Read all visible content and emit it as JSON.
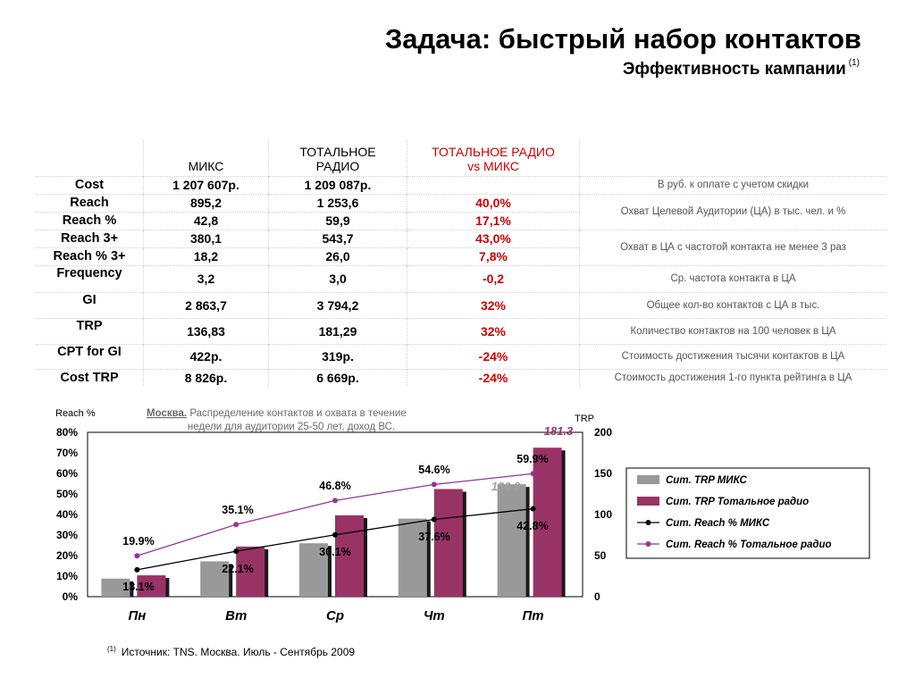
{
  "header": {
    "title": "Задача: быстрый набор контактов",
    "subtitle": "Эффективность кампании",
    "subtitle_ref": "(1)"
  },
  "table": {
    "columns": [
      "МИКС",
      "ТОТАЛЬНОЕ РАДИО",
      "ТОТАЛЬНОЕ РАДИО vs МИКС"
    ],
    "column_lines": {
      "c1": [
        "МИКС"
      ],
      "c2": [
        "ТОТАЛЬНОЕ",
        "РАДИО"
      ],
      "c3": [
        "ТОТАЛЬНОЕ РАДИО",
        "vs МИКС"
      ]
    },
    "rows": [
      {
        "label": "Cost",
        "mix": "1 207 607р.",
        "total": "1 209 087р.",
        "diff": ""
      },
      {
        "label": "Reach",
        "mix": "895,2",
        "total": "1 253,6",
        "diff": "40,0%"
      },
      {
        "label": "Reach %",
        "mix": "42,8",
        "total": "59,9",
        "diff": "17,1%"
      },
      {
        "label": "Reach 3+",
        "mix": "380,1",
        "total": "543,7",
        "diff": "43,0%"
      },
      {
        "label": "Reach % 3+",
        "mix": "18,2",
        "total": "26,0",
        "diff": "7,8%"
      },
      {
        "label": "Frequency",
        "mix": "3,2",
        "total": "3,0",
        "diff": "-0,2"
      },
      {
        "label": "GI",
        "mix": "2 863,7",
        "total": "3 794,2",
        "diff": "32%"
      },
      {
        "label": "TRP",
        "mix": "136,83",
        "total": "181,29",
        "diff": "32%"
      },
      {
        "label": "CPT for GI",
        "mix": "422р.",
        "total": "319р.",
        "diff": "-24%"
      },
      {
        "label": "Cost TRP",
        "mix": "8 826р.",
        "total": "6 669р.",
        "diff": "-24%"
      }
    ],
    "notes": [
      "В руб. к оплате с учетом скидки",
      "Охват Целевой Аудитории (ЦА) в тыс. чел. и %",
      "Охват в ЦА с частотой контакта не менее 3 раз",
      "Ср. частота контакта в ЦА",
      "Общее кол-во контактов с ЦА в тыс.",
      "Количество контактов на 100 человек в ЦА",
      "Стоимость достижения тысячи контактов в ЦА",
      "Стоимость достижения 1-го пункта рейтинга в ЦА"
    ]
  },
  "chart_data": {
    "type": "bar",
    "title_city": "Москва.",
    "title_line1": "Распределение контактов и охвата в течение",
    "title_line2": "недели для аудитории 25-50 лет, доход ВС.",
    "ylabel_left": "Reach %",
    "ylabel_right": "TRP",
    "categories": [
      "Пн",
      "Вт",
      "Ср",
      "Чт",
      "Пт"
    ],
    "left_axis": {
      "min": 0,
      "max": 80,
      "ticks": [
        "0%",
        "10%",
        "20%",
        "30%",
        "40%",
        "50%",
        "60%",
        "70%",
        "80%"
      ]
    },
    "right_axis": {
      "min": 0,
      "max": 200,
      "ticks": [
        "0",
        "50",
        "100",
        "150",
        "200"
      ]
    },
    "bars": [
      {
        "name": "Cum. TRP МИКС",
        "axis": "right",
        "color": "#999999",
        "values": [
          22,
          43,
          65,
          95,
          136.8
        ]
      },
      {
        "name": "Cum. TRP Тотальное радио",
        "axis": "right",
        "color": "#993366",
        "values": [
          26,
          61,
          99,
          131,
          181.3
        ]
      }
    ],
    "lines": [
      {
        "name": "Cum. Reach % МИКС",
        "axis": "left",
        "color": "#000000",
        "values": [
          13.1,
          22.1,
          30.1,
          37.6,
          42.8
        ],
        "labels": [
          "13.1%",
          "22.1%",
          "30.1%",
          "37.6%",
          "42.8%"
        ]
      },
      {
        "name": "Cum. Reach % Тотальное радио",
        "axis": "left",
        "color": "#993399",
        "values": [
          19.9,
          35.1,
          46.8,
          54.6,
          59.9
        ],
        "labels": [
          "19.9%",
          "35.1%",
          "46.8%",
          "54.6%",
          "59.9%"
        ]
      }
    ],
    "bar_value_labels": {
      "mix_last": "136.8",
      "total_last": "181.3"
    },
    "legend_position": "right"
  },
  "footer": {
    "ref": "(1)",
    "source": "Источник: TNS. Москва. Июль - Сентябрь 2009"
  }
}
